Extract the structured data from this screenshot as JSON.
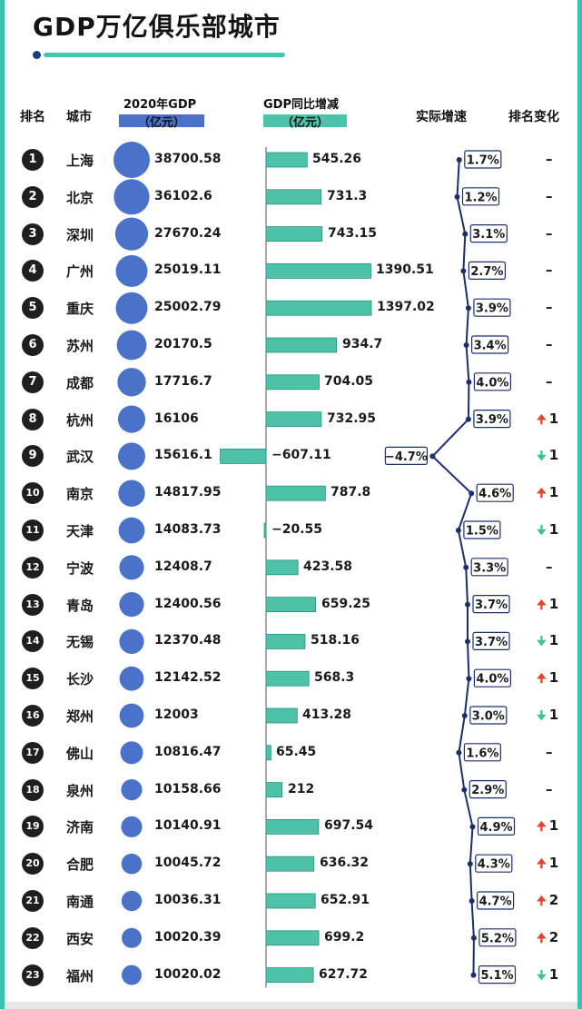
{
  "title": "GDP万亿俱乐部城市",
  "headers": {
    "rank": "排名",
    "city": "城市",
    "gdp": "2020年GDP",
    "gdp_unit": "（亿元）",
    "increase": "GDP同比增减",
    "increase_unit": "（亿元）",
    "growth": "实际增速",
    "rank_change": "排名变化"
  },
  "colors": {
    "bubble": "#4a72c8",
    "bar": "#4ec2a8",
    "bar_border": "#2a8f7a",
    "line": "#1b2f6b",
    "up": "#e0462e",
    "down": "#3cc0a0"
  },
  "chart_data": {
    "type": "table",
    "title": "GDP万亿俱乐部城市",
    "rows": [
      {
        "rank": "1",
        "city": "上海",
        "gdp": 38700.58,
        "gdp_label": "38700.58",
        "increase": 545.26,
        "increase_label": "545.26",
        "growth": 1.7,
        "growth_label": "1.7%",
        "change_dir": "none",
        "change_label": "–"
      },
      {
        "rank": "2",
        "city": "北京",
        "gdp": 36102.6,
        "gdp_label": "36102.6",
        "increase": 731.3,
        "increase_label": "731.3",
        "growth": 1.2,
        "growth_label": "1.2%",
        "change_dir": "none",
        "change_label": "–"
      },
      {
        "rank": "3",
        "city": "深圳",
        "gdp": 27670.24,
        "gdp_label": "27670.24",
        "increase": 743.15,
        "increase_label": "743.15",
        "growth": 3.1,
        "growth_label": "3.1%",
        "change_dir": "none",
        "change_label": "–"
      },
      {
        "rank": "4",
        "city": "广州",
        "gdp": 25019.11,
        "gdp_label": "25019.11",
        "increase": 1390.51,
        "increase_label": "1390.51",
        "growth": 2.7,
        "growth_label": "2.7%",
        "change_dir": "none",
        "change_label": "–"
      },
      {
        "rank": "5",
        "city": "重庆",
        "gdp": 25002.79,
        "gdp_label": "25002.79",
        "increase": 1397.02,
        "increase_label": "1397.02",
        "growth": 3.9,
        "growth_label": "3.9%",
        "change_dir": "none",
        "change_label": "–"
      },
      {
        "rank": "6",
        "city": "苏州",
        "gdp": 20170.5,
        "gdp_label": "20170.5",
        "increase": 934.7,
        "increase_label": "934.7",
        "growth": 3.4,
        "growth_label": "3.4%",
        "change_dir": "none",
        "change_label": "–"
      },
      {
        "rank": "7",
        "city": "成都",
        "gdp": 17716.7,
        "gdp_label": "17716.7",
        "increase": 704.05,
        "increase_label": "704.05",
        "growth": 4.0,
        "growth_label": "4.0%",
        "change_dir": "none",
        "change_label": "–"
      },
      {
        "rank": "8",
        "city": "杭州",
        "gdp": 16106,
        "gdp_label": "16106",
        "increase": 732.95,
        "increase_label": "732.95",
        "growth": 3.9,
        "growth_label": "3.9%",
        "change_dir": "up",
        "change_label": "1"
      },
      {
        "rank": "9",
        "city": "武汉",
        "gdp": 15616.1,
        "gdp_label": "15616.1",
        "increase": -607.11,
        "increase_label": "−607.11",
        "growth": -4.7,
        "growth_label": "−4.7%",
        "change_dir": "down",
        "change_label": "1"
      },
      {
        "rank": "10",
        "city": "南京",
        "gdp": 14817.95,
        "gdp_label": "14817.95",
        "increase": 787.8,
        "increase_label": "787.8",
        "growth": 4.6,
        "growth_label": "4.6%",
        "change_dir": "up",
        "change_label": "1"
      },
      {
        "rank": "11",
        "city": "天津",
        "gdp": 14083.73,
        "gdp_label": "14083.73",
        "increase": -20.55,
        "increase_label": "−20.55",
        "growth": 1.5,
        "growth_label": "1.5%",
        "change_dir": "down",
        "change_label": "1"
      },
      {
        "rank": "12",
        "city": "宁波",
        "gdp": 12408.7,
        "gdp_label": "12408.7",
        "increase": 423.58,
        "increase_label": "423.58",
        "growth": 3.3,
        "growth_label": "3.3%",
        "change_dir": "none",
        "change_label": "–"
      },
      {
        "rank": "13",
        "city": "青岛",
        "gdp": 12400.56,
        "gdp_label": "12400.56",
        "increase": 659.25,
        "increase_label": "659.25",
        "growth": 3.7,
        "growth_label": "3.7%",
        "change_dir": "up",
        "change_label": "1"
      },
      {
        "rank": "14",
        "city": "无锡",
        "gdp": 12370.48,
        "gdp_label": "12370.48",
        "increase": 518.16,
        "increase_label": "518.16",
        "growth": 3.7,
        "growth_label": "3.7%",
        "change_dir": "down",
        "change_label": "1"
      },
      {
        "rank": "15",
        "city": "长沙",
        "gdp": 12142.52,
        "gdp_label": "12142.52",
        "increase": 568.3,
        "increase_label": "568.3",
        "growth": 4.0,
        "growth_label": "4.0%",
        "change_dir": "up",
        "change_label": "1"
      },
      {
        "rank": "16",
        "city": "郑州",
        "gdp": 12003,
        "gdp_label": "12003",
        "increase": 413.28,
        "increase_label": "413.28",
        "growth": 3.0,
        "growth_label": "3.0%",
        "change_dir": "down",
        "change_label": "1"
      },
      {
        "rank": "17",
        "city": "佛山",
        "gdp": 10816.47,
        "gdp_label": "10816.47",
        "increase": 65.45,
        "increase_label": "65.45",
        "growth": 1.6,
        "growth_label": "1.6%",
        "change_dir": "none",
        "change_label": "–"
      },
      {
        "rank": "18",
        "city": "泉州",
        "gdp": 10158.66,
        "gdp_label": "10158.66",
        "increase": 212,
        "increase_label": "212",
        "growth": 2.9,
        "growth_label": "2.9%",
        "change_dir": "none",
        "change_label": "–"
      },
      {
        "rank": "19",
        "city": "济南",
        "gdp": 10140.91,
        "gdp_label": "10140.91",
        "increase": 697.54,
        "increase_label": "697.54",
        "growth": 4.9,
        "growth_label": "4.9%",
        "change_dir": "up",
        "change_label": "1"
      },
      {
        "rank": "20",
        "city": "合肥",
        "gdp": 10045.72,
        "gdp_label": "10045.72",
        "increase": 636.32,
        "increase_label": "636.32",
        "growth": 4.3,
        "growth_label": "4.3%",
        "change_dir": "up",
        "change_label": "1"
      },
      {
        "rank": "21",
        "city": "南通",
        "gdp": 10036.31,
        "gdp_label": "10036.31",
        "increase": 652.91,
        "increase_label": "652.91",
        "growth": 4.7,
        "growth_label": "4.7%",
        "change_dir": "up",
        "change_label": "2"
      },
      {
        "rank": "22",
        "city": "西安",
        "gdp": 10020.39,
        "gdp_label": "10020.39",
        "increase": 699.2,
        "increase_label": "699.2",
        "growth": 5.2,
        "growth_label": "5.2%",
        "change_dir": "up",
        "change_label": "2"
      },
      {
        "rank": "23",
        "city": "福州",
        "gdp": 10020.02,
        "gdp_label": "10020.02",
        "increase": 627.72,
        "increase_label": "627.72",
        "growth": 5.1,
        "growth_label": "5.1%",
        "change_dir": "down",
        "change_label": "1"
      }
    ]
  }
}
